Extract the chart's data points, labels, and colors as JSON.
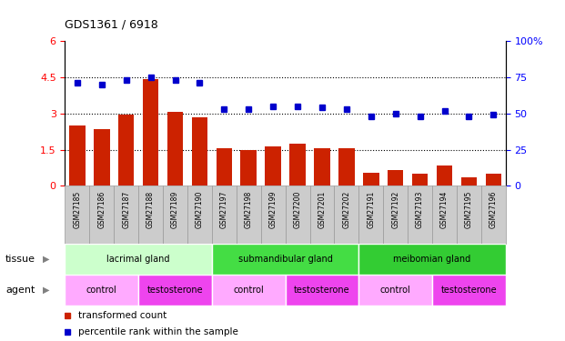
{
  "title": "GDS1361 / 6918",
  "samples": [
    "GSM27185",
    "GSM27186",
    "GSM27187",
    "GSM27188",
    "GSM27189",
    "GSM27190",
    "GSM27197",
    "GSM27198",
    "GSM27199",
    "GSM27200",
    "GSM27201",
    "GSM27202",
    "GSM27191",
    "GSM27192",
    "GSM27193",
    "GSM27194",
    "GSM27195",
    "GSM27196"
  ],
  "transformed_count": [
    2.5,
    2.35,
    2.95,
    4.4,
    3.05,
    2.85,
    1.55,
    1.5,
    1.65,
    1.75,
    1.55,
    1.55,
    0.55,
    0.65,
    0.5,
    0.85,
    0.35,
    0.5
  ],
  "percentile_rank": [
    71,
    70,
    73,
    75,
    73,
    71,
    53,
    53,
    55,
    55,
    54,
    53,
    48,
    50,
    48,
    52,
    48,
    49
  ],
  "bar_color": "#cc2200",
  "dot_color": "#0000cc",
  "ylim_left": [
    0,
    6
  ],
  "ylim_right": [
    0,
    100
  ],
  "yticks_left": [
    0,
    1.5,
    3.0,
    4.5,
    6
  ],
  "ytick_labels_left": [
    "0",
    "1.5",
    "3",
    "4.5",
    "6"
  ],
  "yticks_right": [
    0,
    25,
    50,
    75,
    100
  ],
  "ytick_labels_right": [
    "0",
    "25",
    "50",
    "75",
    "100%"
  ],
  "hlines": [
    1.5,
    3.0,
    4.5
  ],
  "tissue_groups": [
    {
      "label": "lacrimal gland",
      "start": 0,
      "end": 6,
      "color": "#ccffcc"
    },
    {
      "label": "submandibular gland",
      "start": 6,
      "end": 12,
      "color": "#44dd44"
    },
    {
      "label": "meibomian gland",
      "start": 12,
      "end": 18,
      "color": "#33cc33"
    }
  ],
  "agent_groups": [
    {
      "label": "control",
      "start": 0,
      "end": 3,
      "color": "#ffaaff"
    },
    {
      "label": "testosterone",
      "start": 3,
      "end": 6,
      "color": "#ee44ee"
    },
    {
      "label": "control",
      "start": 6,
      "end": 9,
      "color": "#ffaaff"
    },
    {
      "label": "testosterone",
      "start": 9,
      "end": 12,
      "color": "#ee44ee"
    },
    {
      "label": "control",
      "start": 12,
      "end": 15,
      "color": "#ffaaff"
    },
    {
      "label": "testosterone",
      "start": 15,
      "end": 18,
      "color": "#ee44ee"
    }
  ],
  "legend_items": [
    {
      "label": "transformed count",
      "color": "#cc2200"
    },
    {
      "label": "percentile rank within the sample",
      "color": "#0000cc"
    }
  ],
  "tissue_label": "tissue",
  "agent_label": "agent",
  "bg_color": "#ffffff",
  "tick_bg_color": "#cccccc",
  "tick_border_color": "#999999"
}
